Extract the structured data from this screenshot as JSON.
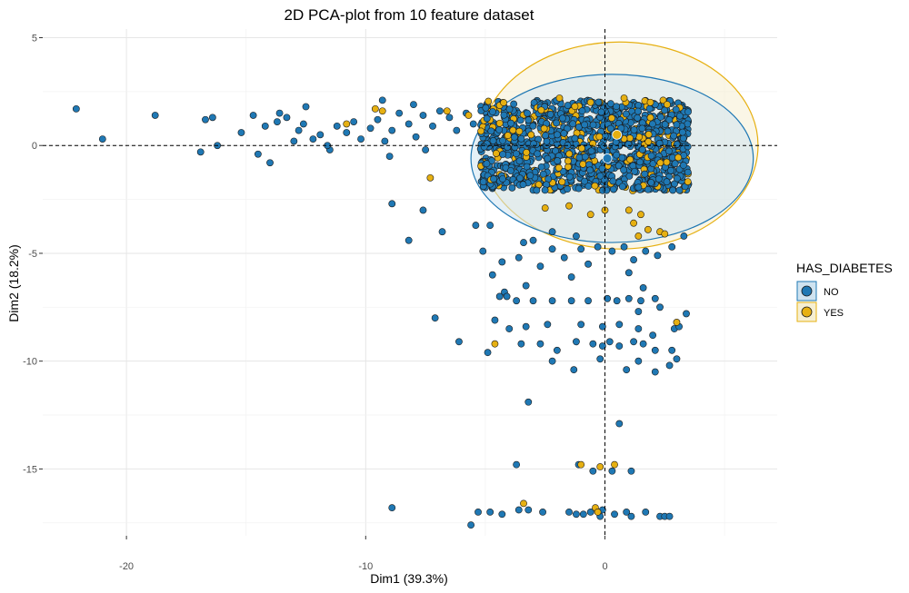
{
  "chart_data": {
    "type": "scatter",
    "title": "2D PCA-plot from 10 feature dataset",
    "xlabel": "Dim1 (39.3%)",
    "ylabel": "Dim2 (18.2%)",
    "xlim": [
      -23.5,
      7.2
    ],
    "ylim": [
      -18.1,
      5.4
    ],
    "x_ticks": [
      -20,
      -10,
      0
    ],
    "y_ticks": [
      5,
      0,
      -5,
      -10,
      -15
    ],
    "grid": true,
    "reference_lines": {
      "x": 0,
      "y": 0
    },
    "legend": {
      "title": "HAS_DIABETES",
      "placement": "right",
      "entries": [
        {
          "label": "NO",
          "color": "#1f78b4"
        },
        {
          "label": "YES",
          "color": "#e6b012"
        }
      ]
    },
    "ellipses": [
      {
        "series": "NO",
        "center": [
          0.3,
          -0.6
        ],
        "radii": [
          5.9,
          3.9
        ],
        "color": "#1f78b4",
        "fill": "#cfe3f0"
      },
      {
        "series": "YES",
        "center": [
          0.6,
          0.0
        ],
        "radii": [
          5.8,
          4.8
        ],
        "color": "#e6b012",
        "fill": "#f6efd2"
      }
    ],
    "centroids": [
      {
        "series": "NO",
        "x": 0.1,
        "y": -0.6
      },
      {
        "series": "YES",
        "x": 0.5,
        "y": 0.5
      }
    ],
    "dense_region": {
      "x_range": [
        -5.2,
        3.5
      ],
      "y_range": [
        -2.1,
        2.1
      ]
    },
    "series": [
      {
        "name": "NO",
        "color": "#1f78b4",
        "points": [
          [
            -22.1,
            1.7
          ],
          [
            -21.0,
            0.3
          ],
          [
            -18.8,
            1.4
          ],
          [
            -16.9,
            -0.3
          ],
          [
            -16.7,
            1.2
          ],
          [
            -16.4,
            1.3
          ],
          [
            -16.2,
            0.0
          ],
          [
            -15.2,
            0.6
          ],
          [
            -14.7,
            1.4
          ],
          [
            -14.5,
            -0.4
          ],
          [
            -14.2,
            0.9
          ],
          [
            -14.0,
            -0.8
          ],
          [
            -13.7,
            1.1
          ],
          [
            -13.3,
            1.3
          ],
          [
            -13.0,
            0.2
          ],
          [
            -12.8,
            0.7
          ],
          [
            -12.6,
            1.0
          ],
          [
            -12.2,
            0.3
          ],
          [
            -11.9,
            0.5
          ],
          [
            -11.5,
            -0.2
          ],
          [
            -11.2,
            0.9
          ],
          [
            -10.8,
            0.6
          ],
          [
            -10.5,
            1.1
          ],
          [
            -10.2,
            0.3
          ],
          [
            -9.8,
            0.8
          ],
          [
            -9.5,
            1.2
          ],
          [
            -9.2,
            0.2
          ],
          [
            -8.9,
            0.7
          ],
          [
            -8.6,
            1.5
          ],
          [
            -8.2,
            1.0
          ],
          [
            -7.9,
            0.4
          ],
          [
            -7.6,
            1.4
          ],
          [
            -7.2,
            0.9
          ],
          [
            -6.9,
            1.6
          ],
          [
            -6.5,
            1.3
          ],
          [
            -6.2,
            0.7
          ],
          [
            -5.8,
            1.5
          ],
          [
            -5.5,
            1.0
          ],
          [
            -12.5,
            1.8
          ],
          [
            -13.6,
            1.5
          ],
          [
            -9.3,
            2.1
          ],
          [
            -8.0,
            1.9
          ],
          [
            -11.6,
            0.0
          ],
          [
            -9.0,
            -0.5
          ],
          [
            -7.5,
            -0.2
          ],
          [
            -8.9,
            -2.7
          ],
          [
            -7.6,
            -3.0
          ],
          [
            -8.2,
            -4.4
          ],
          [
            -6.8,
            -4.0
          ],
          [
            -7.1,
            -8.0
          ],
          [
            -6.1,
            -9.1
          ],
          [
            -5.4,
            -3.7
          ],
          [
            -4.8,
            -3.7
          ],
          [
            -5.1,
            -4.9
          ],
          [
            -4.3,
            -5.4
          ],
          [
            -4.7,
            -6.0
          ],
          [
            -4.2,
            -6.8
          ],
          [
            -3.6,
            -5.2
          ],
          [
            -3.4,
            -4.5
          ],
          [
            -3.0,
            -4.4
          ],
          [
            -3.3,
            -6.5
          ],
          [
            -2.7,
            -5.6
          ],
          [
            -2.2,
            -4.8
          ],
          [
            -1.7,
            -5.2
          ],
          [
            -1.4,
            -6.1
          ],
          [
            -1.0,
            -4.8
          ],
          [
            -0.7,
            -5.5
          ],
          [
            -0.3,
            -4.7
          ],
          [
            0.3,
            -4.9
          ],
          [
            0.8,
            -4.7
          ],
          [
            1.2,
            -5.3
          ],
          [
            1.7,
            -4.9
          ],
          [
            2.2,
            -5.1
          ],
          [
            2.8,
            -4.7
          ],
          [
            3.3,
            -4.2
          ],
          [
            -2.2,
            -4.0
          ],
          [
            -1.2,
            -4.2
          ],
          [
            1.0,
            -5.9
          ],
          [
            -4.4,
            -7.0
          ],
          [
            -4.1,
            -7.0
          ],
          [
            -3.7,
            -7.2
          ],
          [
            -3.0,
            -7.2
          ],
          [
            -2.2,
            -7.2
          ],
          [
            -1.4,
            -7.2
          ],
          [
            -0.7,
            -7.2
          ],
          [
            0.1,
            -7.1
          ],
          [
            0.5,
            -7.2
          ],
          [
            1.0,
            -7.1
          ],
          [
            1.5,
            -7.2
          ],
          [
            2.1,
            -7.1
          ],
          [
            2.3,
            -7.5
          ],
          [
            1.4,
            -7.7
          ],
          [
            -4.6,
            -8.1
          ],
          [
            -4.0,
            -8.5
          ],
          [
            -3.3,
            -8.4
          ],
          [
            -2.4,
            -8.3
          ],
          [
            -1.0,
            -8.3
          ],
          [
            -0.1,
            -8.4
          ],
          [
            0.6,
            -8.3
          ],
          [
            1.4,
            -8.5
          ],
          [
            2.0,
            -8.8
          ],
          [
            2.9,
            -8.5
          ],
          [
            3.1,
            -8.4
          ],
          [
            3.4,
            -7.8
          ],
          [
            1.6,
            -6.6
          ],
          [
            -4.9,
            -9.6
          ],
          [
            -3.5,
            -9.2
          ],
          [
            -2.7,
            -9.2
          ],
          [
            -2.0,
            -9.5
          ],
          [
            -1.2,
            -9.1
          ],
          [
            -0.5,
            -9.2
          ],
          [
            -0.1,
            -9.3
          ],
          [
            0.2,
            -9.1
          ],
          [
            0.6,
            -9.3
          ],
          [
            1.2,
            -9.1
          ],
          [
            1.6,
            -9.2
          ],
          [
            2.1,
            -9.5
          ],
          [
            2.8,
            -9.5
          ],
          [
            3.0,
            -9.9
          ],
          [
            -2.2,
            -10.0
          ],
          [
            -1.3,
            -10.4
          ],
          [
            -0.2,
            -9.9
          ],
          [
            0.9,
            -10.4
          ],
          [
            1.4,
            -10.0
          ],
          [
            2.1,
            -10.5
          ],
          [
            2.7,
            -10.2
          ],
          [
            -3.2,
            -11.9
          ],
          [
            0.6,
            -12.9
          ],
          [
            -3.7,
            -14.8
          ],
          [
            -1.1,
            -14.8
          ],
          [
            0.3,
            -15.1
          ],
          [
            1.1,
            -15.1
          ],
          [
            -0.5,
            -15.1
          ],
          [
            -8.9,
            -16.8
          ],
          [
            -5.3,
            -17.0
          ],
          [
            -5.6,
            -17.6
          ],
          [
            -4.8,
            -17.0
          ],
          [
            -4.3,
            -17.1
          ],
          [
            -3.6,
            -16.9
          ],
          [
            -3.2,
            -16.9
          ],
          [
            -2.6,
            -17.0
          ],
          [
            -1.5,
            -17.0
          ],
          [
            -1.2,
            -17.1
          ],
          [
            -0.9,
            -17.1
          ],
          [
            -0.6,
            -17.0
          ],
          [
            -0.2,
            -17.2
          ],
          [
            0.4,
            -17.1
          ],
          [
            0.9,
            -17.0
          ],
          [
            1.1,
            -17.2
          ],
          [
            1.7,
            -17.0
          ],
          [
            2.3,
            -17.2
          ],
          [
            2.5,
            -17.2
          ],
          [
            2.7,
            -17.2
          ],
          [
            -0.1,
            -16.9
          ]
        ]
      },
      {
        "name": "YES",
        "color": "#e6b012",
        "points": [
          [
            -10.8,
            1.0
          ],
          [
            -9.6,
            1.7
          ],
          [
            -9.3,
            1.6
          ],
          [
            -6.6,
            1.6
          ],
          [
            -7.3,
            -1.5
          ],
          [
            -5.7,
            1.4
          ],
          [
            -2.5,
            -2.9
          ],
          [
            -1.5,
            -2.8
          ],
          [
            1.0,
            -3.0
          ],
          [
            1.5,
            -3.2
          ],
          [
            1.2,
            -3.6
          ],
          [
            1.8,
            -3.9
          ],
          [
            2.3,
            -4.0
          ],
          [
            1.4,
            -4.2
          ],
          [
            2.5,
            -4.1
          ],
          [
            0.0,
            -3.0
          ],
          [
            -0.6,
            -3.2
          ],
          [
            -4.6,
            -9.2
          ],
          [
            3.0,
            -8.2
          ],
          [
            -1.0,
            -14.8
          ],
          [
            -0.2,
            -14.9
          ],
          [
            0.4,
            -14.8
          ],
          [
            -3.4,
            -16.6
          ],
          [
            -0.4,
            -16.8
          ],
          [
            -0.3,
            -17.0
          ],
          [
            -1.9,
            2.2
          ],
          [
            -0.6,
            2.0
          ],
          [
            0.8,
            2.2
          ],
          [
            1.9,
            2.0
          ],
          [
            2.6,
            1.9
          ]
        ]
      }
    ]
  }
}
